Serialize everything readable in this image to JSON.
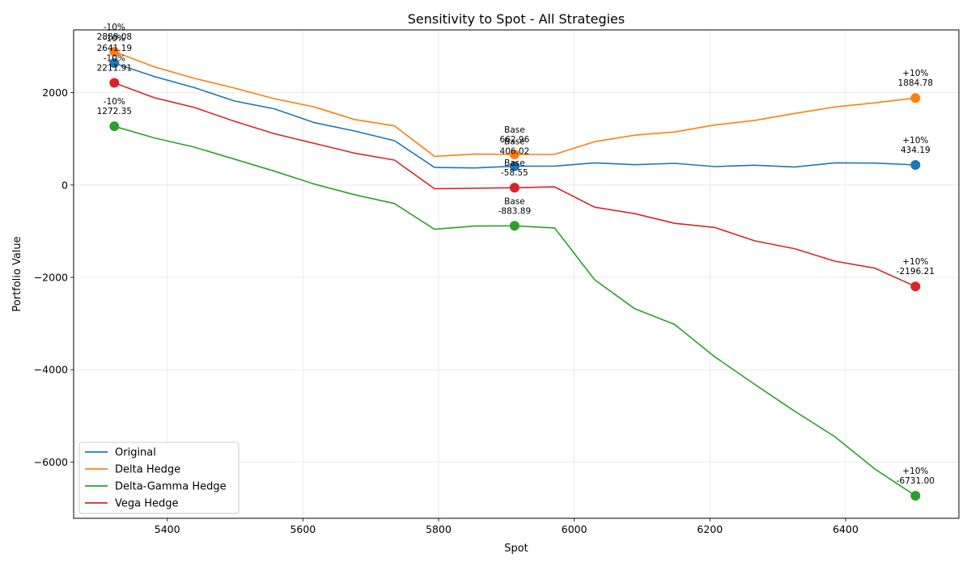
{
  "chart_data": {
    "type": "line",
    "title": "Sensitivity to Spot - All Strategies",
    "xlabel": "Spot",
    "ylabel": "Portfolio Value",
    "xlim": [
      5262,
      6567
    ],
    "ylim": [
      -7220,
      3360
    ],
    "xticks": [
      5400,
      5600,
      5800,
      6000,
      6200,
      6400
    ],
    "yticks": [
      -6000,
      -4000,
      -2000,
      0,
      2000
    ],
    "ytick_labels": [
      "−6000",
      "−4000",
      "−2000",
      "0",
      "2000"
    ],
    "grid": true,
    "legend_position": "lower-left",
    "x": [
      5322,
      5381,
      5440,
      5499,
      5558,
      5617,
      5676,
      5735,
      5794,
      5853,
      5912,
      5971,
      6030,
      6089,
      6148,
      6207,
      6266,
      6325,
      6384,
      6443,
      6503
    ],
    "series": [
      {
        "name": "Original",
        "color": "#1f77b4",
        "values": [
          2641.19,
          2350,
          2110,
          1820,
          1650,
          1350,
          1170,
          960,
          380,
          370,
          406.02,
          410,
          480,
          440,
          470,
          400,
          430,
          390,
          480,
          475,
          434.19
        ]
      },
      {
        "name": "Delta Hedge",
        "color": "#ff7f0e",
        "values": [
          2888.08,
          2560,
          2310,
          2100,
          1870,
          1690,
          1420,
          1280,
          620,
          670,
          662.96,
          665,
          940,
          1080,
          1150,
          1300,
          1400,
          1550,
          1690,
          1780,
          1884.78
        ]
      },
      {
        "name": "Delta-Gamma Hedge",
        "color": "#2ca02c",
        "values": [
          1272.35,
          1020,
          820,
          560,
          300,
          20,
          -210,
          -400,
          -960,
          -890,
          -883.89,
          -930,
          -2050,
          -2680,
          -3020,
          -3720,
          -4320,
          -4900,
          -5450,
          -6150,
          -6731.0
        ]
      },
      {
        "name": "Vega Hedge",
        "color": "#d62728",
        "values": [
          2211.91,
          1890,
          1680,
          1380,
          1110,
          900,
          690,
          540,
          -80,
          -70,
          -58.55,
          -40,
          -480,
          -620,
          -830,
          -920,
          -1210,
          -1380,
          -1650,
          -1800,
          -2196.21
        ]
      }
    ],
    "markers": [
      {
        "series": 0,
        "index": 0,
        "line1": "-10%",
        "line2": "2641.19"
      },
      {
        "series": 0,
        "index": 10,
        "line1": "Base",
        "line2": "406.02"
      },
      {
        "series": 0,
        "index": 20,
        "line1": "+10%",
        "line2": "434.19"
      },
      {
        "series": 1,
        "index": 0,
        "line1": "-10%",
        "line2": "2888.08"
      },
      {
        "series": 1,
        "index": 10,
        "line1": "Base",
        "line2": "662.96"
      },
      {
        "series": 1,
        "index": 20,
        "line1": "+10%",
        "line2": "1884.78"
      },
      {
        "series": 2,
        "index": 0,
        "line1": "-10%",
        "line2": "1272.35"
      },
      {
        "series": 2,
        "index": 10,
        "line1": "Base",
        "line2": "-883.89"
      },
      {
        "series": 2,
        "index": 20,
        "line1": "+10%",
        "line2": "-6731.00"
      },
      {
        "series": 3,
        "index": 0,
        "line1": "-10%",
        "line2": "2211.91"
      },
      {
        "series": 3,
        "index": 10,
        "line1": "Base",
        "line2": "-58.55"
      },
      {
        "series": 3,
        "index": 20,
        "line1": "+10%",
        "line2": "-2196.21"
      }
    ]
  }
}
